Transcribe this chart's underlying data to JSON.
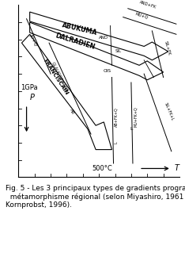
{
  "caption": "Fig. 5 - Les 3 principaux types de gradients progrades du\n  métamorphisme régional (selon Miyashiro, 1961 ; in :\nKornprobst, 1996).",
  "caption_fontsize": 6.5,
  "pressure_label": "1GPa",
  "temp_label": "500°C",
  "xlabel": "T",
  "ylabel": "P"
}
